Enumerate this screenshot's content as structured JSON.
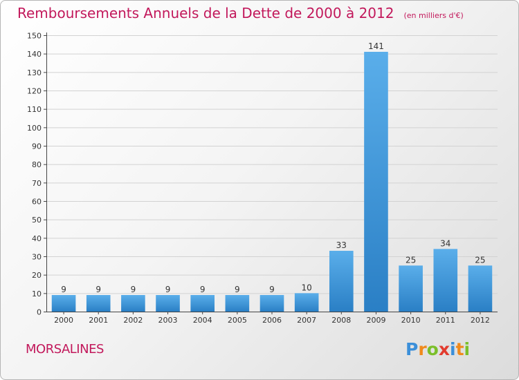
{
  "title": "Remboursements Annuels de la Dette de 2000 à 2012",
  "subtitle": "(en milliers d'€)",
  "place": "MORSALINES",
  "brand": {
    "text": "Proxiti",
    "letters": [
      {
        "ch": "P",
        "color": "#3b8fd9"
      },
      {
        "ch": "r",
        "color": "#f08a1c"
      },
      {
        "ch": "o",
        "color": "#7bbf2a"
      },
      {
        "ch": "x",
        "color": "#e23b2e"
      },
      {
        "ch": "i",
        "color": "#3b8fd9"
      },
      {
        "ch": "t",
        "color": "#f08a1c"
      },
      {
        "ch": "i",
        "color": "#7bbf2a"
      }
    ]
  },
  "colors": {
    "accent": "#c2185b",
    "bar_top": "#5aaeea",
    "bar_bottom": "#2a7fc5",
    "grid": "#d2d2d2"
  },
  "chart_data": {
    "type": "bar",
    "title": "Remboursements Annuels de la Dette de 2000 à 2012",
    "subtitle": "(en milliers d'€)",
    "categories": [
      "2000",
      "2001",
      "2002",
      "2003",
      "2004",
      "2005",
      "2006",
      "2007",
      "2008",
      "2009",
      "2010",
      "2011",
      "2012"
    ],
    "values": [
      9,
      9,
      9,
      9,
      9,
      9,
      9,
      10,
      33,
      141,
      25,
      34,
      25
    ],
    "data_labels": [
      "9",
      "9",
      "9",
      "9",
      "9",
      "9",
      "9",
      "10",
      "33",
      "141",
      "25",
      "34",
      "25"
    ],
    "ylim": [
      0,
      150
    ],
    "yticks": [
      0,
      10,
      20,
      30,
      40,
      50,
      60,
      70,
      80,
      90,
      100,
      110,
      120,
      130,
      140,
      150
    ],
    "grid": true,
    "legend": "none"
  }
}
